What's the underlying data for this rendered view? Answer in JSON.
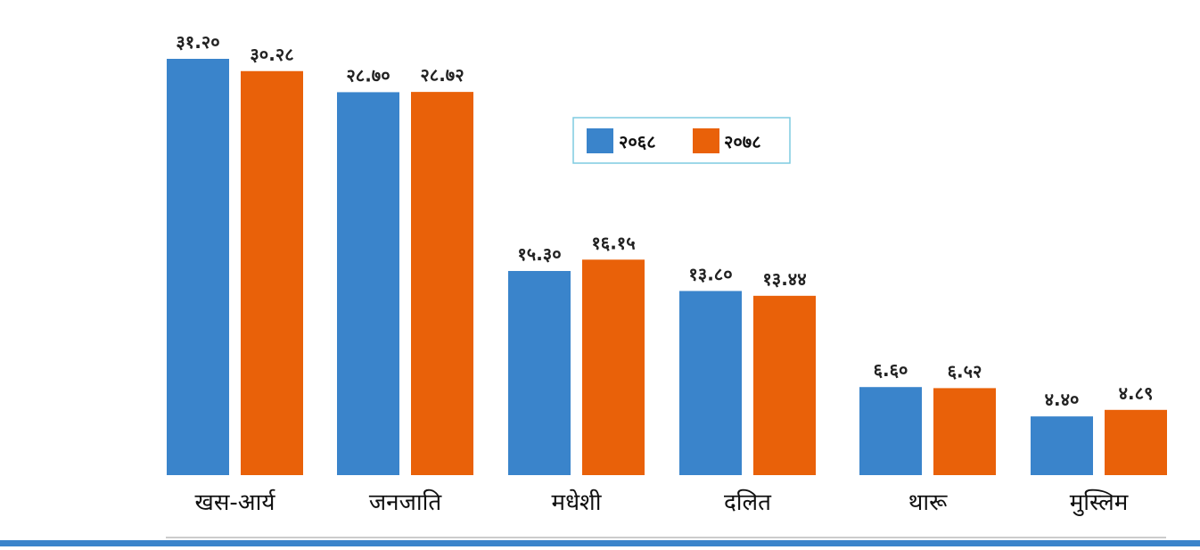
{
  "colors": {
    "series_2068": "#3A84CB",
    "series_2078": "#E96109",
    "legend_border": "#7ECBE0",
    "axis_line": "#999999",
    "bottom_bar": "#3A84CB"
  },
  "chart_data": {
    "type": "bar",
    "categories": [
      "खस-आर्य",
      "जनजाति",
      "मधेशी",
      "दलित",
      "थारू",
      "मुस्लिम"
    ],
    "series": [
      {
        "name": "२०६८",
        "values": [
          31.2,
          28.7,
          15.3,
          13.8,
          6.6,
          4.4
        ],
        "labels": [
          "३१.२०",
          "२८.७०",
          "१५.३०",
          "१३.८०",
          "६.६०",
          "४.४०"
        ]
      },
      {
        "name": "२०७८",
        "values": [
          30.28,
          28.72,
          16.15,
          13.44,
          6.52,
          4.89
        ],
        "labels": [
          "३०.२८",
          "२८.७२",
          "१६.१५",
          "१३.४४",
          "६.५२",
          "४.८९"
        ]
      }
    ],
    "ylim": [
      0,
      31.2
    ],
    "grid": false,
    "legend": "top-center",
    "xlabel": "",
    "ylabel": "",
    "title": ""
  }
}
